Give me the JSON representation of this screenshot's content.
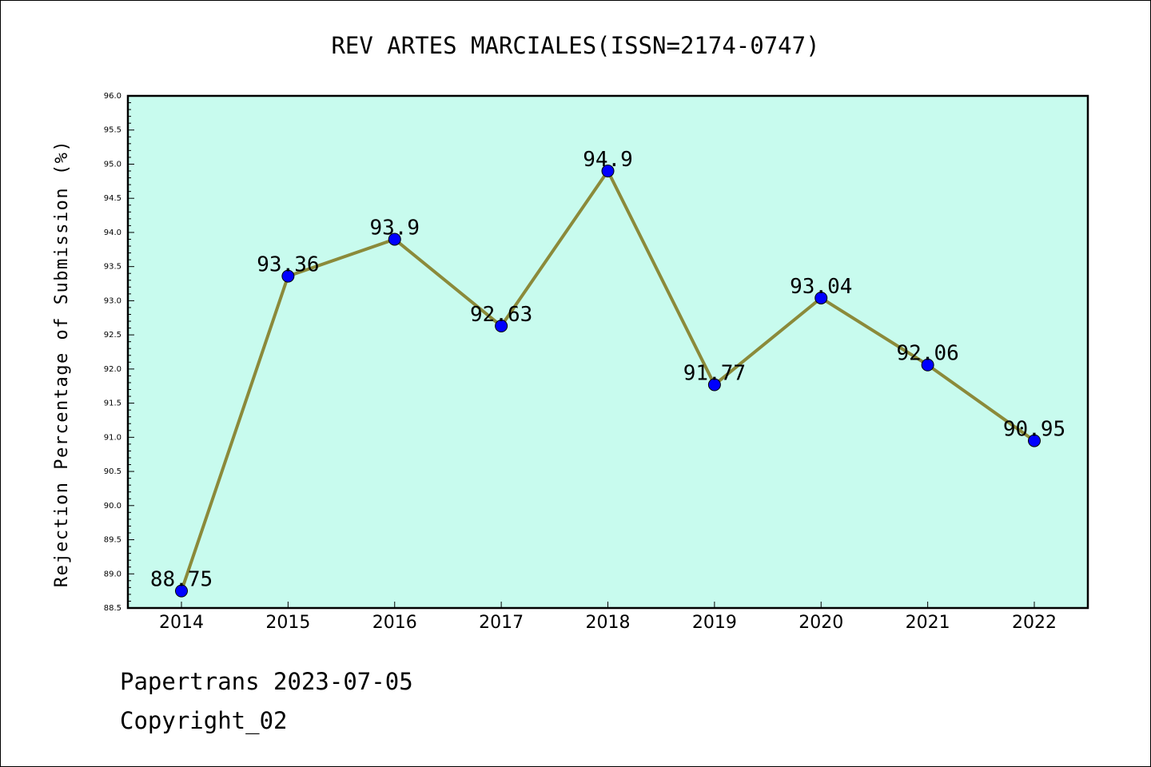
{
  "chart_data": {
    "type": "line",
    "title": "REV ARTES MARCIALES(ISSN=2174-0747)",
    "xlabel": "",
    "ylabel": "Rejection Percentage of Submission (%)",
    "categories": [
      "2014",
      "2015",
      "2016",
      "2017",
      "2018",
      "2019",
      "2020",
      "2021",
      "2022"
    ],
    "series": [
      {
        "values": [
          88.75,
          93.36,
          93.9,
          92.63,
          94.9,
          91.77,
          93.04,
          92.06,
          90.95
        ],
        "labels": [
          "88.75",
          "93.36",
          "93.9",
          "92.63",
          "94.9",
          "91.77",
          "93.04",
          "92.06",
          "90.95"
        ]
      }
    ],
    "ylim": [
      88.5,
      96.0
    ],
    "yticks": [
      "88.5",
      "89.0",
      "89.5",
      "90.0",
      "90.5",
      "91.0",
      "91.5",
      "92.0",
      "92.5",
      "93.0",
      "93.5",
      "94.0",
      "94.5",
      "95.0",
      "95.5",
      "96.0"
    ],
    "grid": false,
    "legend": "none",
    "colors": {
      "plot_background": "#c8fbee",
      "line": "#8b8a3a",
      "marker": "#0000ff",
      "axis": "#000000"
    }
  },
  "footer": {
    "date_line": "Papertrans 2023-07-05",
    "copyright": "Copyright_02"
  }
}
